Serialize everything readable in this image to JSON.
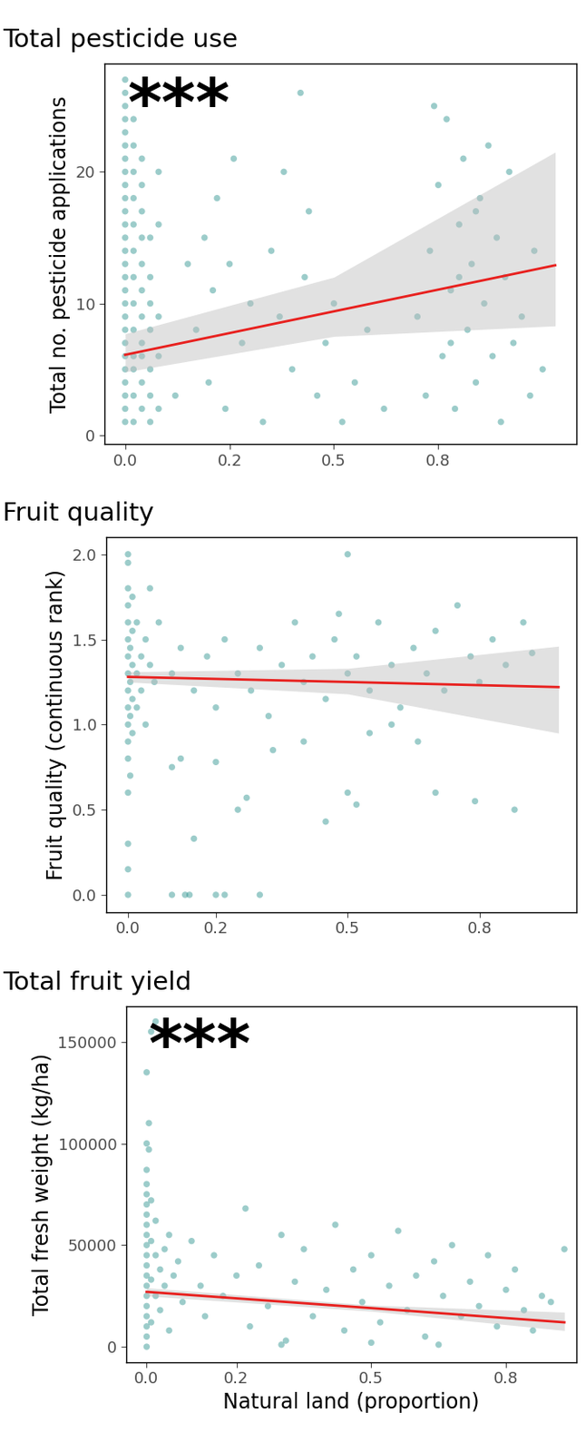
{
  "chart_data": [
    {
      "type": "scatter",
      "title": "Total pesticide use",
      "y_label": "Total no. pesticide applications",
      "annotation": "***",
      "color": "#3a9a96",
      "x": [
        0,
        0,
        0,
        0,
        0,
        0,
        0,
        0,
        0,
        0,
        0,
        0,
        0,
        0,
        0,
        0,
        0,
        0,
        0,
        0,
        0,
        0,
        0,
        0,
        0,
        0,
        0,
        0.02,
        0.02,
        0.02,
        0.02,
        0.02,
        0.02,
        0.02,
        0.02,
        0.02,
        0.02,
        0.02,
        0.02,
        0.02,
        0.04,
        0.04,
        0.04,
        0.04,
        0.04,
        0.04,
        0.04,
        0.04,
        0.04,
        0.04,
        0.04,
        0.06,
        0.06,
        0.06,
        0.06,
        0.06,
        0.06,
        0.06,
        0.08,
        0.08,
        0.08,
        0.08,
        0.08,
        0.12,
        0.15,
        0.17,
        0.19,
        0.2,
        0.21,
        0.22,
        0.24,
        0.25,
        0.26,
        0.28,
        0.3,
        0.33,
        0.35,
        0.37,
        0.38,
        0.4,
        0.42,
        0.43,
        0.44,
        0.46,
        0.48,
        0.5,
        0.52,
        0.55,
        0.58,
        0.62,
        0.7,
        0.72,
        0.73,
        0.75,
        0.76,
        0.77,
        0.78,
        0.79,
        0.8,
        0.81,
        0.82,
        0.83,
        0.84,
        0.85,
        0.86,
        0.87,
        0.88,
        0.89,
        0.9,
        0.91,
        0.92,
        0.93,
        0.95,
        0.97,
        0.98,
        1.0,
        0.74,
        0.8,
        0.84,
        0.78
      ],
      "values": [
        1,
        2,
        3,
        4,
        5,
        6,
        7,
        8,
        9,
        10,
        11,
        12,
        13,
        14,
        15,
        16,
        17,
        18,
        19,
        20,
        21,
        22,
        23,
        24,
        25,
        26,
        27,
        1,
        3,
        5,
        6,
        8,
        10,
        12,
        14,
        16,
        18,
        20,
        22,
        24,
        2,
        4,
        6,
        7,
        9,
        11,
        13,
        15,
        17,
        19,
        21,
        1,
        3,
        5,
        8,
        10,
        12,
        15,
        2,
        6,
        9,
        16,
        20,
        3,
        13,
        8,
        15,
        4,
        11,
        18,
        2,
        13,
        21,
        7,
        10,
        1,
        14,
        9,
        20,
        5,
        26,
        12,
        17,
        3,
        7,
        10,
        1,
        4,
        8,
        2,
        9,
        3,
        14,
        19,
        6,
        24,
        11,
        2,
        16,
        21,
        8,
        13,
        4,
        18,
        10,
        22,
        6,
        15,
        1,
        12,
        20,
        7,
        9,
        3,
        14,
        5,
        25,
        12,
        17,
        7
      ],
      "fit": {
        "x": [
          0,
          0.5,
          1.03
        ],
        "values": [
          6.1,
          9.4,
          12.9
        ],
        "lower": [
          4.8,
          7.5,
          8.3
        ],
        "upper": [
          7.7,
          12.0,
          21.5
        ],
        "color": "#e8201e"
      },
      "xlim": [
        -0.05,
        1.08
      ],
      "xticks": [
        {
          "value": 0,
          "label": "0.0"
        },
        {
          "value": 0.25,
          "label": "0.2"
        },
        {
          "value": 0.5,
          "label": "0.5"
        },
        {
          "value": 0.75,
          "label": "0.8"
        }
      ],
      "ylim": [
        -0.7,
        28.2
      ],
      "yticks": [
        0,
        10,
        20
      ]
    },
    {
      "type": "scatter",
      "title": "Fruit quality",
      "y_label": "Fruit quality (continuous rank)",
      "color": "#3a9a96",
      "x": [
        0,
        0,
        0,
        0,
        0,
        0,
        0,
        0,
        0,
        0,
        0,
        0,
        0,
        0,
        0,
        0,
        0,
        0.005,
        0.005,
        0.005,
        0.005,
        0.01,
        0.01,
        0.01,
        0.01,
        0.01,
        0.02,
        0.02,
        0.02,
        0.03,
        0.03,
        0.04,
        0.04,
        0.05,
        0.05,
        0.06,
        0.07,
        0.1,
        0.13,
        0.14,
        0.2,
        0.22,
        0.3,
        0.15,
        0.1,
        0.12,
        0.2,
        0.25,
        0.27,
        0.45,
        0.5,
        0.52,
        0.7,
        0.79,
        0.88,
        0.5,
        0.1,
        0.12,
        0.15,
        0.18,
        0.2,
        0.22,
        0.25,
        0.28,
        0.3,
        0.32,
        0.35,
        0.38,
        0.4,
        0.42,
        0.45,
        0.47,
        0.5,
        0.52,
        0.55,
        0.57,
        0.6,
        0.62,
        0.65,
        0.68,
        0.7,
        0.72,
        0.75,
        0.78,
        0.8,
        0.83,
        0.86,
        0.9,
        0.92,
        0.55,
        0.6,
        0.4,
        0.48,
        0.33,
        0.66
      ],
      "values": [
        1.0,
        1.1,
        1.2,
        1.3,
        1.4,
        1.5,
        1.6,
        1.7,
        1.8,
        0.9,
        0.8,
        0.6,
        0.3,
        0.15,
        0.0,
        2.0,
        1.95,
        1.25,
        1.45,
        1.05,
        0.7,
        1.35,
        1.55,
        1.15,
        0.95,
        1.75,
        1.3,
        1.6,
        1.1,
        1.4,
        1.2,
        1.5,
        1.0,
        1.35,
        1.8,
        1.25,
        1.6,
        0.0,
        0.0,
        0.0,
        0.0,
        0.0,
        0.0,
        0.33,
        0.75,
        0.8,
        0.78,
        0.5,
        0.57,
        0.43,
        0.6,
        0.53,
        0.6,
        0.55,
        0.5,
        2.0,
        1.3,
        1.45,
        1.2,
        1.4,
        1.1,
        1.5,
        1.3,
        1.2,
        1.45,
        1.05,
        1.35,
        1.6,
        1.25,
        1.4,
        1.15,
        1.5,
        1.3,
        1.4,
        1.2,
        1.6,
        1.35,
        1.1,
        1.45,
        1.3,
        1.55,
        1.2,
        1.7,
        1.4,
        1.25,
        1.5,
        1.35,
        1.6,
        1.42,
        0.95,
        1.0,
        0.9,
        1.65,
        0.85,
        0.9
      ],
      "fit": {
        "x": [
          0,
          0.5,
          0.98
        ],
        "values": [
          1.28,
          1.25,
          1.22
        ],
        "lower": [
          1.25,
          1.18,
          0.95
        ],
        "upper": [
          1.31,
          1.33,
          1.46
        ],
        "color": "#e8201e"
      },
      "xlim": [
        -0.05,
        1.02
      ],
      "xticks": [
        {
          "value": 0,
          "label": "0.0"
        },
        0.2,
        0.5,
        0.8
      ],
      "ylim": [
        -0.1,
        2.1
      ],
      "yticks": [
        {
          "value": 0,
          "label": "0.0"
        },
        0.5,
        {
          "value": 1,
          "label": "1.0"
        },
        1.5,
        {
          "value": 2,
          "label": "2.0"
        }
      ]
    },
    {
      "type": "scatter",
      "title": "Total fruit yield",
      "y_label": "Total fresh weight (kg/ha)",
      "x_label": "Natural land (proportion)",
      "annotation": "***",
      "color": "#3a9a96",
      "x": [
        0,
        0,
        0,
        0,
        0,
        0,
        0,
        0,
        0,
        0,
        0,
        0,
        0,
        0,
        0,
        0,
        0,
        0,
        0,
        0,
        0.005,
        0.01,
        0.02,
        0.005,
        0.01,
        0.01,
        0.01,
        0.01,
        0.02,
        0.02,
        0.02,
        0.03,
        0.03,
        0.04,
        0.04,
        0.05,
        0.05,
        0.06,
        0.07,
        0.08,
        0.1,
        0.12,
        0.13,
        0.15,
        0.17,
        0.2,
        0.22,
        0.23,
        0.25,
        0.27,
        0.3,
        0.31,
        0.33,
        0.35,
        0.37,
        0.4,
        0.42,
        0.44,
        0.46,
        0.48,
        0.5,
        0.52,
        0.54,
        0.56,
        0.58,
        0.6,
        0.62,
        0.64,
        0.66,
        0.68,
        0.7,
        0.72,
        0.74,
        0.76,
        0.78,
        0.8,
        0.82,
        0.84,
        0.86,
        0.88,
        0.9,
        0.93,
        0.5,
        0.65,
        0.3
      ],
      "values": [
        0,
        5000,
        10000,
        15000,
        20000,
        25000,
        30000,
        35000,
        40000,
        45000,
        50000,
        55000,
        60000,
        65000,
        70000,
        75000,
        80000,
        87000,
        100000,
        135000,
        110000,
        155000,
        160000,
        97000,
        72000,
        52000,
        33000,
        12000,
        45000,
        25000,
        62000,
        38000,
        18000,
        48000,
        30000,
        55000,
        8000,
        35000,
        42000,
        22000,
        52000,
        30000,
        15000,
        45000,
        25000,
        35000,
        68000,
        10000,
        40000,
        20000,
        55000,
        3000,
        32000,
        48000,
        15000,
        28000,
        60000,
        8000,
        38000,
        22000,
        45000,
        12000,
        30000,
        57000,
        18000,
        35000,
        5000,
        42000,
        25000,
        50000,
        15000,
        32000,
        20000,
        45000,
        10000,
        28000,
        38000,
        18000,
        8000,
        25000,
        22000,
        48000,
        2000,
        1000,
        1000
      ],
      "fit": {
        "x": [
          0,
          0.5,
          0.93
        ],
        "values": [
          27000,
          19000,
          12000
        ],
        "lower": [
          25000,
          17500,
          8000
        ],
        "upper": [
          29000,
          20500,
          17000
        ],
        "color": "#e8201e"
      },
      "xlim": [
        -0.046,
        0.956
      ],
      "xticks": [
        {
          "value": 0,
          "label": "0.0"
        },
        0.2,
        0.5,
        0.8
      ],
      "ylim": [
        -7500,
        167500
      ],
      "yticks": [
        0,
        50000,
        100000,
        150000
      ]
    }
  ]
}
